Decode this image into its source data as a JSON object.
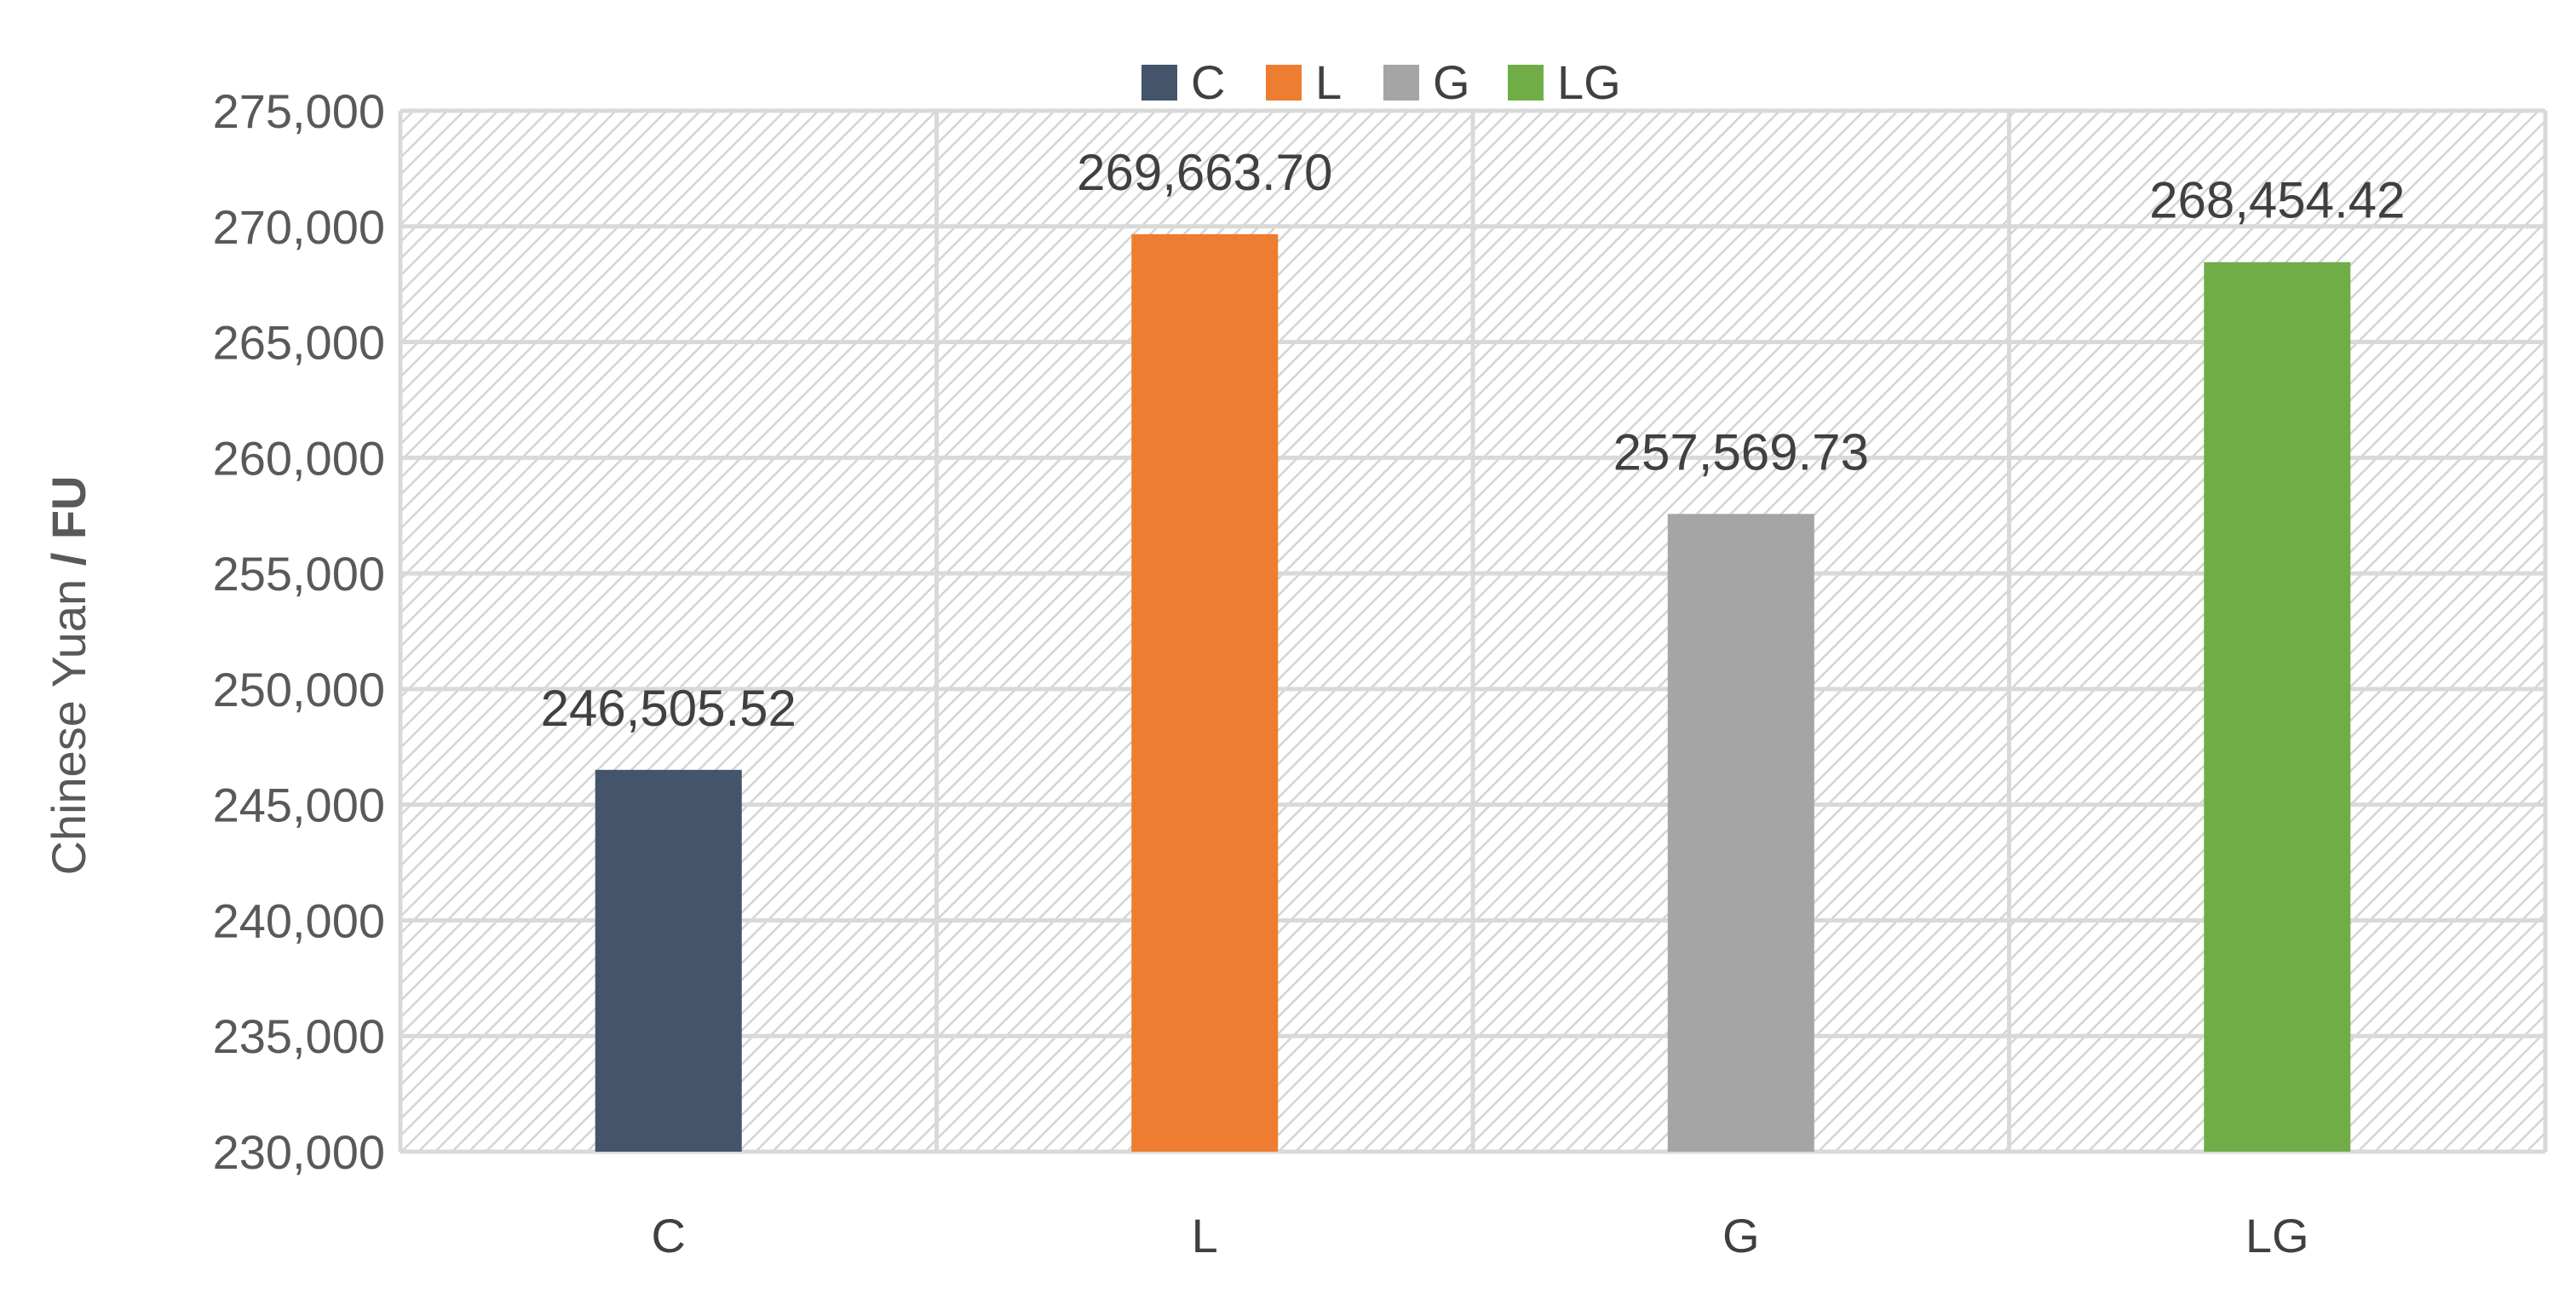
{
  "chart_data": {
    "type": "bar",
    "categories": [
      "C",
      "L",
      "G",
      "LG"
    ],
    "values": [
      246505.52,
      269663.7,
      257569.73,
      268454.42
    ],
    "data_labels": [
      "246,505.52",
      "269,663.70",
      "257,569.73",
      "268,454.42"
    ],
    "colors": [
      "#44546a",
      "#ed7d31",
      "#a5a5a5",
      "#70ad47"
    ],
    "ylabel_part1": "Chinese Yuan",
    "ylabel_part2": " / FU",
    "ylim": [
      230000,
      275000
    ],
    "yticks": [
      230000,
      235000,
      240000,
      245000,
      250000,
      255000,
      260000,
      265000,
      270000,
      275000
    ],
    "ytick_labels": [
      "230,000",
      "235,000",
      "240,000",
      "245,000",
      "250,000",
      "255,000",
      "260,000",
      "265,000",
      "270,000",
      "275,000"
    ],
    "legend": {
      "placement": "top-center",
      "entries": [
        "C",
        "L",
        "G",
        "LG"
      ]
    },
    "grid": true,
    "background": "hatched"
  }
}
